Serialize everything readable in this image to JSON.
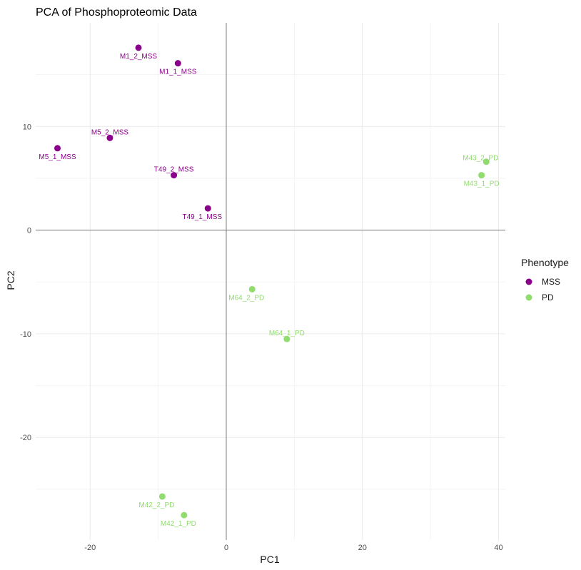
{
  "chart_data": {
    "type": "scatter",
    "title": "PCA of Phosphoproteomic Data",
    "xlabel": "PC1",
    "ylabel": "PC2",
    "xlim": [
      -28,
      41
    ],
    "ylim": [
      -29.9,
      20
    ],
    "x_ticks": [
      -20,
      0,
      20,
      40
    ],
    "y_ticks": [
      -20,
      -10,
      0,
      10
    ],
    "x_tick_labels": [
      "-20",
      "0",
      "20",
      "40"
    ],
    "y_tick_labels": [
      "-20",
      "-10",
      "0",
      "10"
    ],
    "grid": true,
    "reference_lines": {
      "x": 0,
      "y": 0
    },
    "legend": {
      "title": "Phenotype",
      "placement": "right",
      "entries": [
        {
          "name": "MSS",
          "color": "#8b008b"
        },
        {
          "name": "PD",
          "color": "#90dc6e"
        }
      ]
    },
    "points": [
      {
        "label": "M1_2_MSS",
        "x": -12.9,
        "y": 17.6,
        "group": "MSS",
        "label_pos": "below"
      },
      {
        "label": "M1_1_MSS",
        "x": -7.1,
        "y": 16.1,
        "group": "MSS",
        "label_pos": "below"
      },
      {
        "label": "M5_2_MSS",
        "x": -17.1,
        "y": 8.9,
        "group": "MSS",
        "label_pos": "above"
      },
      {
        "label": "M5_1_MSS",
        "x": -24.8,
        "y": 7.9,
        "group": "MSS",
        "label_pos": "below"
      },
      {
        "label": "T49_2_MSS",
        "x": -7.7,
        "y": 5.3,
        "group": "MSS",
        "label_pos": "above"
      },
      {
        "label": "T49_1_MSS",
        "x": -2.7,
        "y": 2.1,
        "group": "MSS",
        "label_pos": "below-left"
      },
      {
        "label": "M43_2_PD",
        "x": 38.2,
        "y": 6.6,
        "group": "PD",
        "label_pos": "above-left"
      },
      {
        "label": "M43_1_PD",
        "x": 37.5,
        "y": 5.3,
        "group": "PD",
        "label_pos": "below"
      },
      {
        "label": "M64_2_PD",
        "x": 3.8,
        "y": -5.7,
        "group": "PD",
        "label_pos": "below-left"
      },
      {
        "label": "M64_1_PD",
        "x": 8.9,
        "y": -10.5,
        "group": "PD",
        "label_pos": "above"
      },
      {
        "label": "M42_2_PD",
        "x": -9.4,
        "y": -25.7,
        "group": "PD",
        "label_pos": "below-left"
      },
      {
        "label": "M42_1_PD",
        "x": -6.2,
        "y": -27.5,
        "group": "PD",
        "label_pos": "below-left"
      }
    ]
  }
}
